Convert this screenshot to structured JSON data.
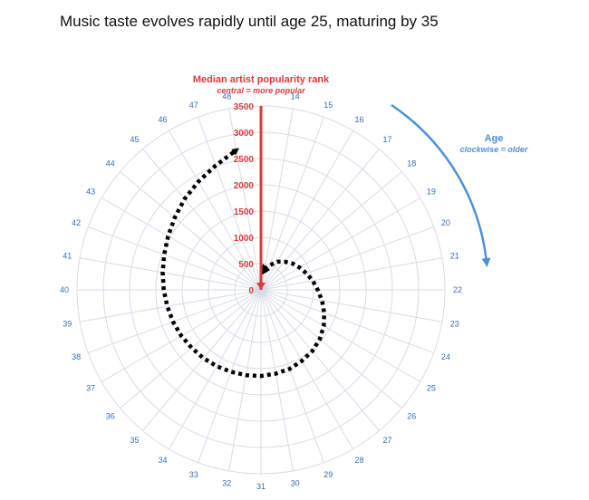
{
  "title": "Music taste evolves rapidly until age 25, maturing by 35",
  "chart_data": {
    "type": "line",
    "subtype": "polar",
    "title": "Music taste evolves rapidly until age 25, maturing by 35",
    "radial_axis": {
      "label": "Median artist popularity rank",
      "sublabel": "central = more popular",
      "range": [
        0,
        3500
      ],
      "ticks": [
        "0",
        "500",
        "1000",
        "1500",
        "2000",
        "2500",
        "3000",
        "3500"
      ],
      "color": "#d93b3b"
    },
    "angular_axis": {
      "label": "Age",
      "sublabel": "clockwise = older",
      "range": [
        13,
        49
      ],
      "ticks": [
        "14",
        "15",
        "16",
        "17",
        "18",
        "19",
        "20",
        "21",
        "22",
        "23",
        "24",
        "25",
        "26",
        "27",
        "28",
        "29",
        "30",
        "31",
        "32",
        "33",
        "34",
        "35",
        "36",
        "37",
        "38",
        "39",
        "40",
        "41",
        "42",
        "43",
        "44",
        "45",
        "46",
        "47",
        "48"
      ],
      "direction": "clockwise",
      "color": "#3b6bb3"
    },
    "grid": true,
    "series": [
      {
        "x": [
          14,
          15,
          16,
          17,
          18,
          19,
          20,
          21,
          22,
          23,
          24,
          25,
          26,
          27,
          28,
          29,
          30,
          31,
          32,
          33,
          34,
          35,
          36,
          37,
          38,
          39,
          40,
          41,
          42,
          43,
          44,
          45,
          46,
          47,
          48
        ],
        "y": [
          400,
          500,
          620,
          700,
          780,
          850,
          920,
          1000,
          1080,
          1180,
          1280,
          1380,
          1460,
          1520,
          1560,
          1600,
          1620,
          1640,
          1650,
          1660,
          1680,
          1700,
          1720,
          1750,
          1780,
          1810,
          1850,
          1900,
          1960,
          2040,
          2140,
          2260,
          2380,
          2520,
          2700
        ],
        "style": "dotted",
        "color": "#000000"
      }
    ]
  }
}
